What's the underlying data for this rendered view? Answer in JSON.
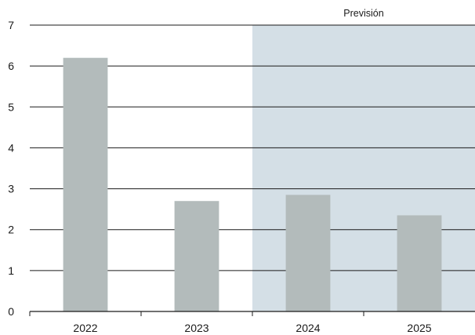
{
  "chart_data": {
    "type": "bar",
    "categories": [
      "2022",
      "2023",
      "2024",
      "2025"
    ],
    "values": [
      6.2,
      2.7,
      2.85,
      2.35
    ],
    "ylim": [
      0,
      7
    ],
    "yticks": [
      0,
      1,
      2,
      3,
      4,
      5,
      6,
      7
    ],
    "grid": true,
    "forecast": {
      "label": "Previsión",
      "from_category": "2024",
      "to_category": "2025"
    },
    "colors": {
      "bar": "#b3bbbb",
      "forecast_band": "#d4dfe6",
      "grid": "#1a1a1a",
      "text": "#1a1a1a"
    }
  }
}
